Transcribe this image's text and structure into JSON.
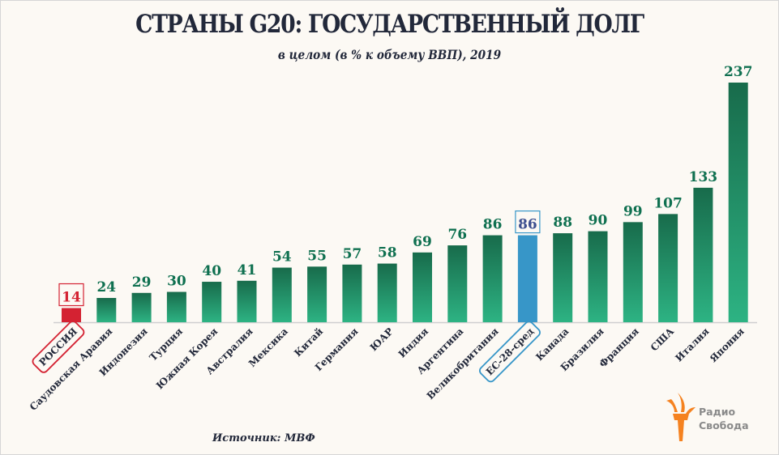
{
  "header": {
    "title": "СТРАНЫ G20: ГОСУДАРСТВЕННЫЙ ДОЛГ",
    "subtitle": "в целом (в % к объему ВВП), 2019"
  },
  "footer": {
    "source": "Источник: МВФ",
    "logo_line1": "Радио",
    "logo_line2": "Свобода"
  },
  "colors": {
    "bar_top": "#186b4b",
    "bar_bottom": "#2db383",
    "value_text": "#0f7050",
    "russia": "#d42232",
    "eu": "#3796c8",
    "eu_text": "#3d4f8f",
    "logo_orange": "#f58220"
  },
  "chart_data": {
    "type": "bar",
    "title": "СТРАНЫ G20: ГОСУДАРСТВЕННЫЙ ДОЛГ",
    "subtitle": "в целом (в % к объему ВВП), 2019",
    "xlabel": "",
    "ylabel": "",
    "ylim": [
      0,
      237
    ],
    "grid": false,
    "categories": [
      "РОССИЯ",
      "Саудовская Аравия",
      "Индонезия",
      "Турция",
      "Южная Корея",
      "Австралия",
      "Мексика",
      "Китай",
      "Германия",
      "ЮАР",
      "Индия",
      "Аргентина",
      "Великобритания",
      "ЕС-28-сред",
      "Канада",
      "Бразилия",
      "Франция",
      "США",
      "Италия",
      "Япония"
    ],
    "values": [
      14,
      24,
      29,
      30,
      40,
      41,
      54,
      55,
      57,
      58,
      69,
      76,
      86,
      86,
      88,
      90,
      99,
      107,
      133,
      237
    ],
    "highlight": {
      "РОССИЯ": "russia",
      "ЕС-28-сред": "eu"
    }
  }
}
